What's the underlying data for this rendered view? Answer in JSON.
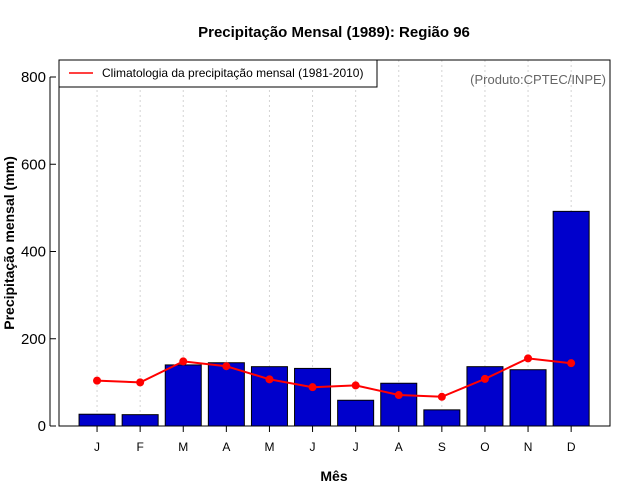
{
  "chart_data": {
    "type": "bar",
    "title": "Precipitação Mensal (1989): Região 96",
    "xlabel": "Mês",
    "ylabel": "Precipitação mensal (mm)",
    "ylim": [
      0,
      800
    ],
    "yticks": [
      0,
      200,
      400,
      600,
      800
    ],
    "grid": true,
    "categories": [
      "J",
      "F",
      "M",
      "A",
      "M",
      "J",
      "J",
      "A",
      "S",
      "O",
      "N",
      "D"
    ],
    "series": [
      {
        "name": "Precipitação mensal (1989)",
        "type": "bar",
        "values": [
          27,
          26,
          140,
          145,
          136,
          132,
          59,
          98,
          37,
          136,
          129,
          492
        ]
      },
      {
        "name": "Climatologia da precipitação mensal (1981-2010)",
        "type": "line",
        "values": [
          104,
          100,
          148,
          137,
          107,
          89,
          93,
          71,
          67,
          108,
          155,
          144
        ]
      }
    ],
    "legend": {
      "position": "top-left",
      "entries": [
        "Climatologia da precipitação mensal (1981-2010)"
      ]
    },
    "annotation": "(Produto:CPTEC/INPE)",
    "colors": {
      "bar_fill": "#0000cc",
      "bar_stroke": "#000000",
      "line": "#ff0000",
      "grid": "#d3d3d3"
    }
  }
}
